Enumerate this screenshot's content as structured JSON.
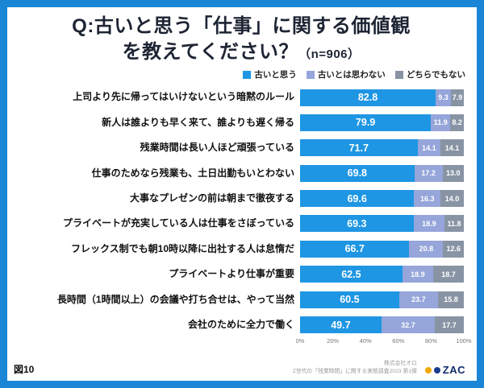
{
  "title": {
    "line1": "Q:古いと思う「仕事」に関する価値観",
    "line2": "を教えてください？",
    "sample": "（n=906）"
  },
  "footer": {
    "figure_label": "図10",
    "company": "株式会社オロ",
    "survey": "Z世代の「残業時間」に関する実態調査2023 第1弾",
    "logo_text": "ZAC"
  },
  "chart_data": {
    "type": "bar",
    "stacked": true,
    "orientation": "horizontal",
    "title": "Q:古いと思う「仕事」に関する価値観を教えてください？",
    "sample_size": "n=906",
    "series": [
      "古いと思う",
      "古いとは思わない",
      "どちらでもない"
    ],
    "colors": [
      "#1e96e3",
      "#96a5da",
      "#8894a4"
    ],
    "categories": [
      "上司より先に帰ってはいけないという暗黙のルール",
      "新人は誰よりも早く来て、誰よりも遅く帰る",
      "残業時間は長い人ほど頑張っている",
      "仕事のためなら残業も、土日出勤もいとわない",
      "大事なプレゼンの前は朝まで徹夜する",
      "プライベートが充実している人は仕事をさぼっている",
      "フレックス制でも朝10時以降に出社する人は怠惰だ",
      "プライベートより仕事が重要",
      "長時間（1時間以上）の会議や打ち合せは、やって当然",
      "会社のために全力で働く"
    ],
    "values": [
      [
        82.8,
        9.3,
        7.9
      ],
      [
        79.9,
        11.9,
        8.2
      ],
      [
        71.7,
        14.1,
        14.1
      ],
      [
        69.8,
        17.2,
        13.0
      ],
      [
        69.6,
        16.3,
        14.0
      ],
      [
        69.3,
        18.9,
        11.8
      ],
      [
        66.7,
        20.8,
        12.6
      ],
      [
        62.5,
        18.9,
        18.7
      ],
      [
        60.5,
        23.7,
        15.8
      ],
      [
        49.7,
        32.7,
        17.7
      ]
    ],
    "xlim": [
      0,
      100
    ],
    "x_ticks": [
      "0%",
      "20%",
      "40%",
      "60%",
      "80%",
      "100%"
    ],
    "legend_position": "top-right",
    "grid": false
  }
}
